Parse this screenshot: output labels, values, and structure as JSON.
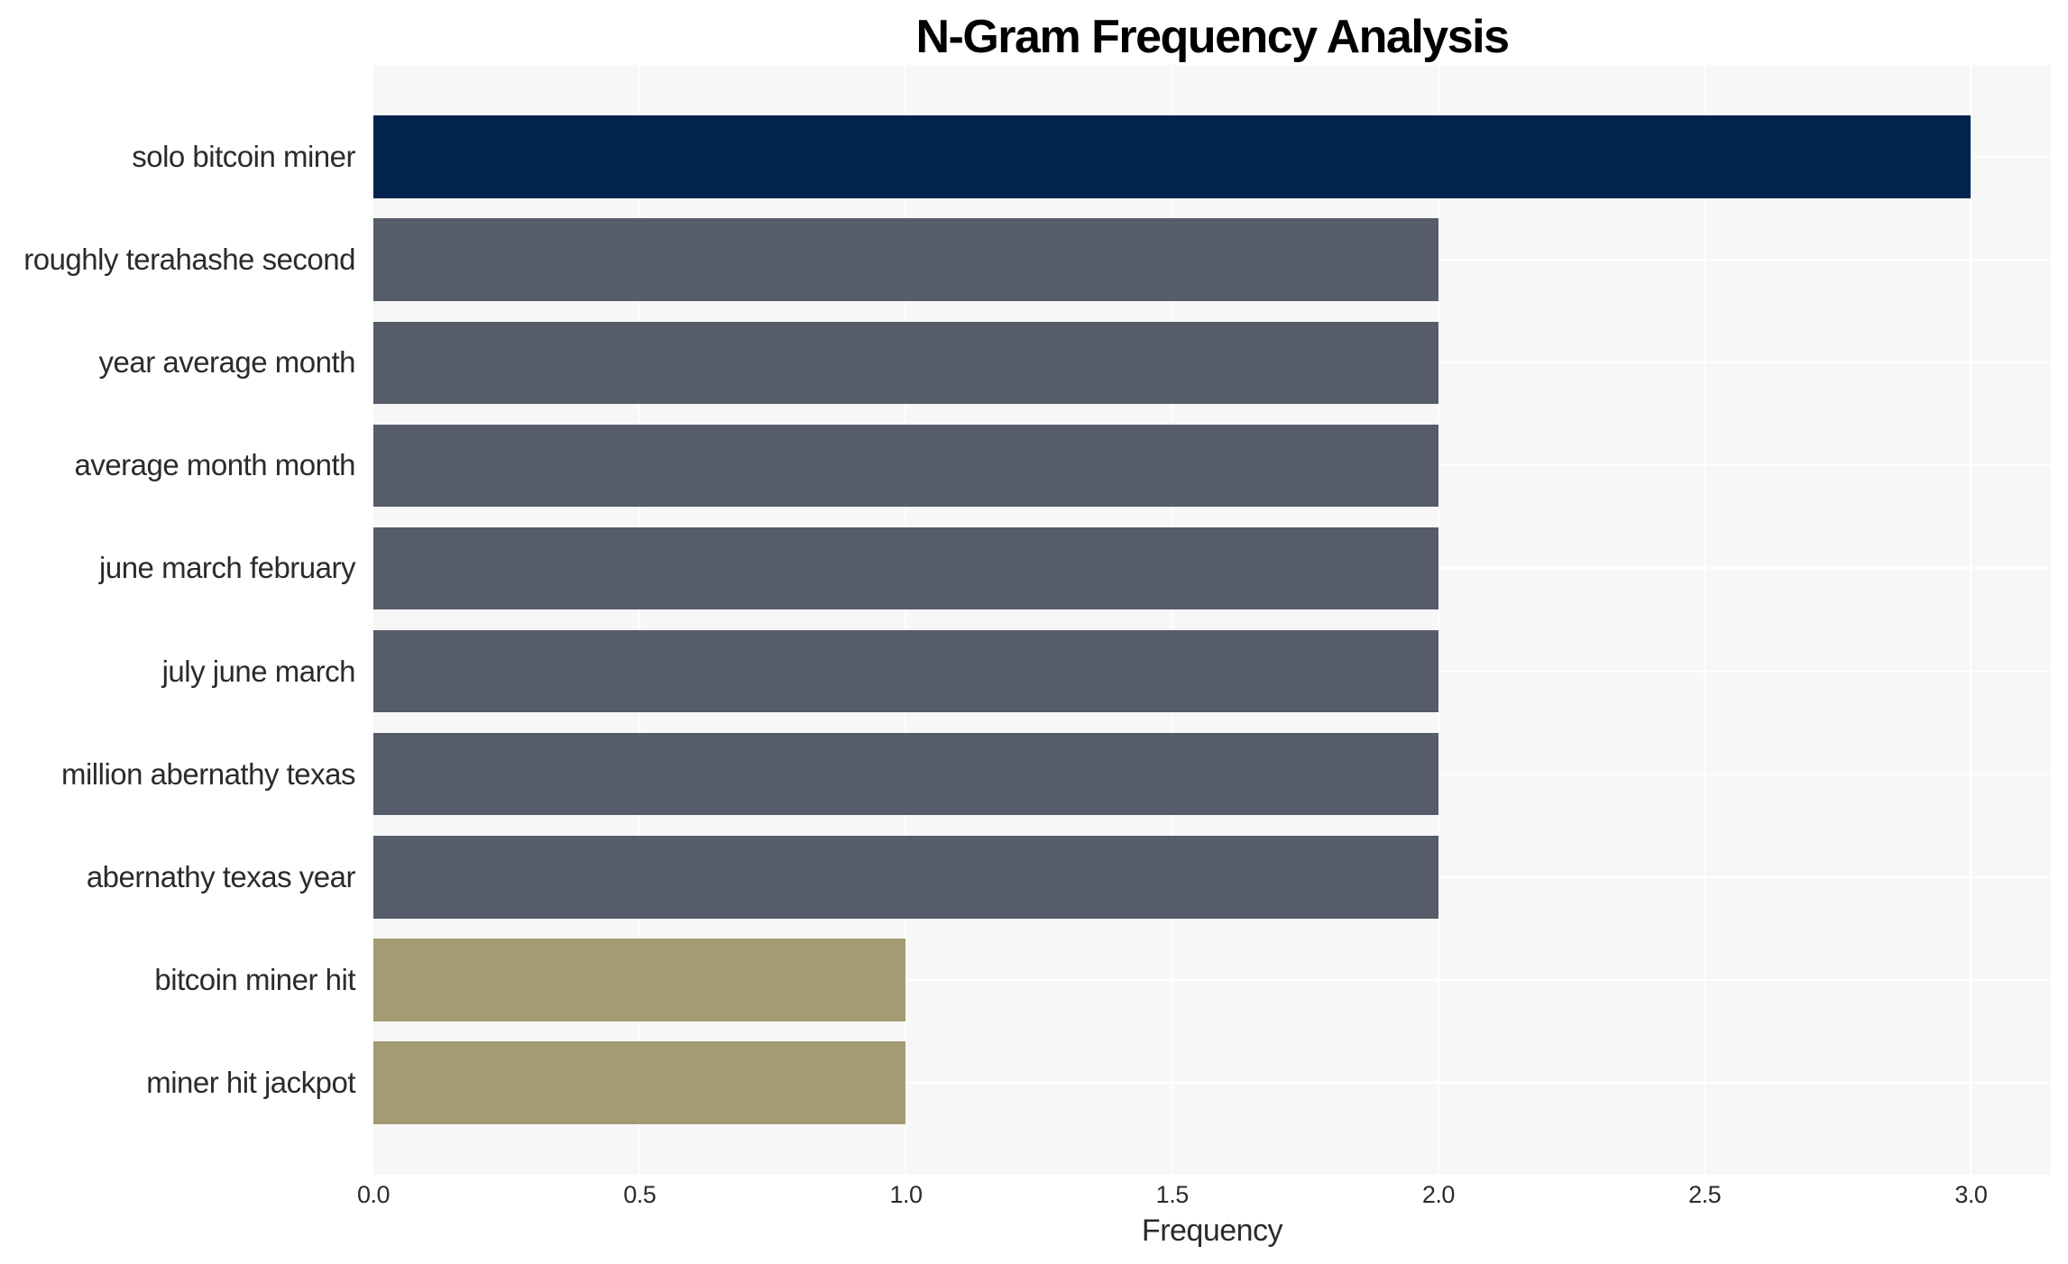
{
  "chart_data": {
    "type": "bar",
    "orientation": "horizontal",
    "title": "N-Gram Frequency Analysis",
    "xlabel": "Frequency",
    "ylabel": "",
    "categories": [
      "solo bitcoin miner",
      "roughly terahashe second",
      "year average month",
      "average month month",
      "june march february",
      "july june march",
      "million abernathy texas",
      "abernathy texas year",
      "bitcoin miner hit",
      "miner hit jackpot"
    ],
    "values": [
      3,
      2,
      2,
      2,
      2,
      2,
      2,
      2,
      1,
      1
    ],
    "bar_colors": [
      "#01234d",
      "#565c6a",
      "#565c6a",
      "#565c6a",
      "#565c6a",
      "#565c6a",
      "#565c6a",
      "#565c6a",
      "#a49b72",
      "#a49b72"
    ],
    "xticks": [
      0,
      0.5,
      1,
      1.5,
      2,
      2.5,
      3
    ],
    "xtick_labels": [
      "0.0",
      "0.5",
      "1.0",
      "1.5",
      "2.0",
      "2.5",
      "3.0"
    ],
    "xlim": [
      0,
      3.15
    ],
    "grid": true,
    "legend": "none",
    "plot_background": "#f7f7f7",
    "grid_color": "#ffffff",
    "text_color": "#2b2b2b"
  }
}
